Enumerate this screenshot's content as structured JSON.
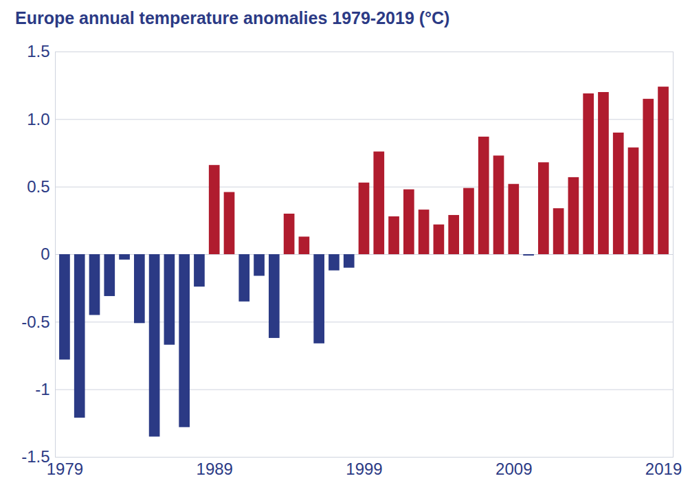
{
  "chart_data": {
    "type": "bar",
    "title": "Europe annual temperature anomalies 1979-2019 (°C)",
    "categories": [
      "1979",
      null,
      null,
      null,
      null,
      null,
      null,
      null,
      null,
      null,
      "1989",
      null,
      null,
      null,
      null,
      null,
      null,
      null,
      null,
      null,
      "1999",
      null,
      null,
      null,
      null,
      null,
      null,
      null,
      null,
      null,
      "2009",
      null,
      null,
      null,
      null,
      null,
      null,
      null,
      null,
      null,
      "2019"
    ],
    "values": [
      -0.78,
      -1.21,
      -0.45,
      -0.31,
      -0.04,
      -0.51,
      -1.35,
      -0.67,
      -1.28,
      -0.24,
      0.66,
      0.46,
      -0.35,
      -0.16,
      -0.62,
      0.3,
      0.13,
      -0.66,
      -0.12,
      -0.1,
      0.53,
      0.76,
      0.28,
      0.48,
      0.33,
      0.22,
      0.29,
      0.49,
      0.87,
      0.73,
      0.52,
      -0.01,
      0.68,
      0.34,
      0.57,
      1.19,
      1.2,
      0.9,
      0.79,
      1.15,
      1.24
    ],
    "colors": [
      "#2b3a85",
      "#2b3a85",
      "#2b3a85",
      "#2b3a85",
      "#2b3a85",
      "#2b3a85",
      "#2b3a85",
      "#2b3a85",
      "#2b3a85",
      "#2b3a85",
      "#b01c2e",
      "#b01c2e",
      "#2b3a85",
      "#2b3a85",
      "#2b3a85",
      "#b01c2e",
      "#b01c2e",
      "#2b3a85",
      "#2b3a85",
      "#2b3a85",
      "#b01c2e",
      "#b01c2e",
      "#b01c2e",
      "#b01c2e",
      "#b01c2e",
      "#b01c2e",
      "#b01c2e",
      "#b01c2e",
      "#b01c2e",
      "#b01c2e",
      "#b01c2e",
      "#2b3a85",
      "#b01c2e",
      "#b01c2e",
      "#b01c2e",
      "#b01c2e",
      "#b01c2e",
      "#b01c2e",
      "#b01c2e",
      "#b01c2e",
      "#b01c2e"
    ],
    "ylim": [
      -1.5,
      1.5
    ],
    "yticks": [
      -1.5,
      -1,
      -0.5,
      0,
      0.5,
      {
        "value": 1,
        "label": "1.0"
      },
      1.5
    ],
    "grid": true
  }
}
